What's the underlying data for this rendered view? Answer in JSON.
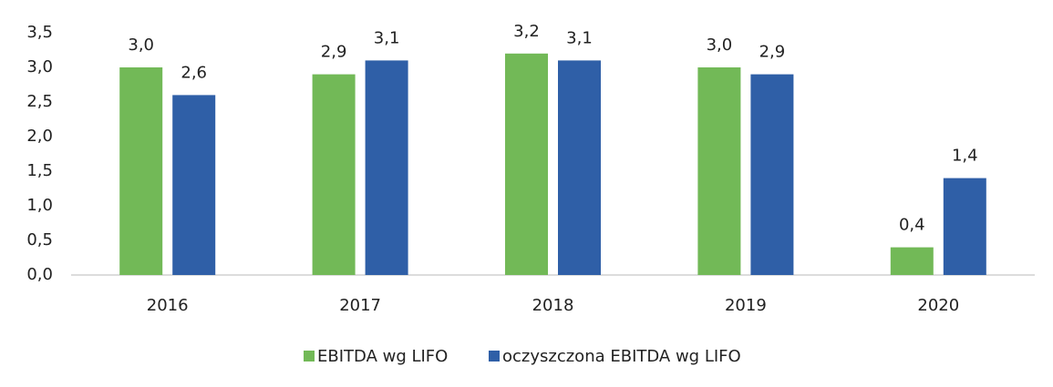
{
  "chart_data": {
    "type": "bar",
    "categories": [
      "2016",
      "2017",
      "2018",
      "2019",
      "2020"
    ],
    "series": [
      {
        "name": "EBITDA wg LIFO",
        "color": "#72b957",
        "values": [
          3.0,
          2.9,
          3.2,
          3.0,
          0.4
        ],
        "value_labels": [
          "3,0",
          "2,9",
          "3,2",
          "3,0",
          "0,4"
        ]
      },
      {
        "name": "oczyszczona EBITDA wg LIFO",
        "color": "#2f5fa7",
        "values": [
          2.6,
          3.1,
          3.1,
          2.9,
          1.4
        ],
        "value_labels": [
          "2,6",
          "3,1",
          "3,1",
          "2,9",
          "1,4"
        ]
      }
    ],
    "ylim": [
      0,
      3.5
    ],
    "yticks": [
      {
        "value": 0,
        "label": "0,0"
      },
      {
        "value": 0.5,
        "label": "0,5"
      },
      {
        "value": 1,
        "label": "1,0"
      },
      {
        "value": 1.5,
        "label": "1,5"
      },
      {
        "value": 2,
        "label": "2,0"
      },
      {
        "value": 2.5,
        "label": "2,5"
      },
      {
        "value": 3,
        "label": "3,0"
      },
      {
        "value": 3.5,
        "label": "3,5"
      }
    ],
    "grid": false,
    "legend": "bottom"
  }
}
